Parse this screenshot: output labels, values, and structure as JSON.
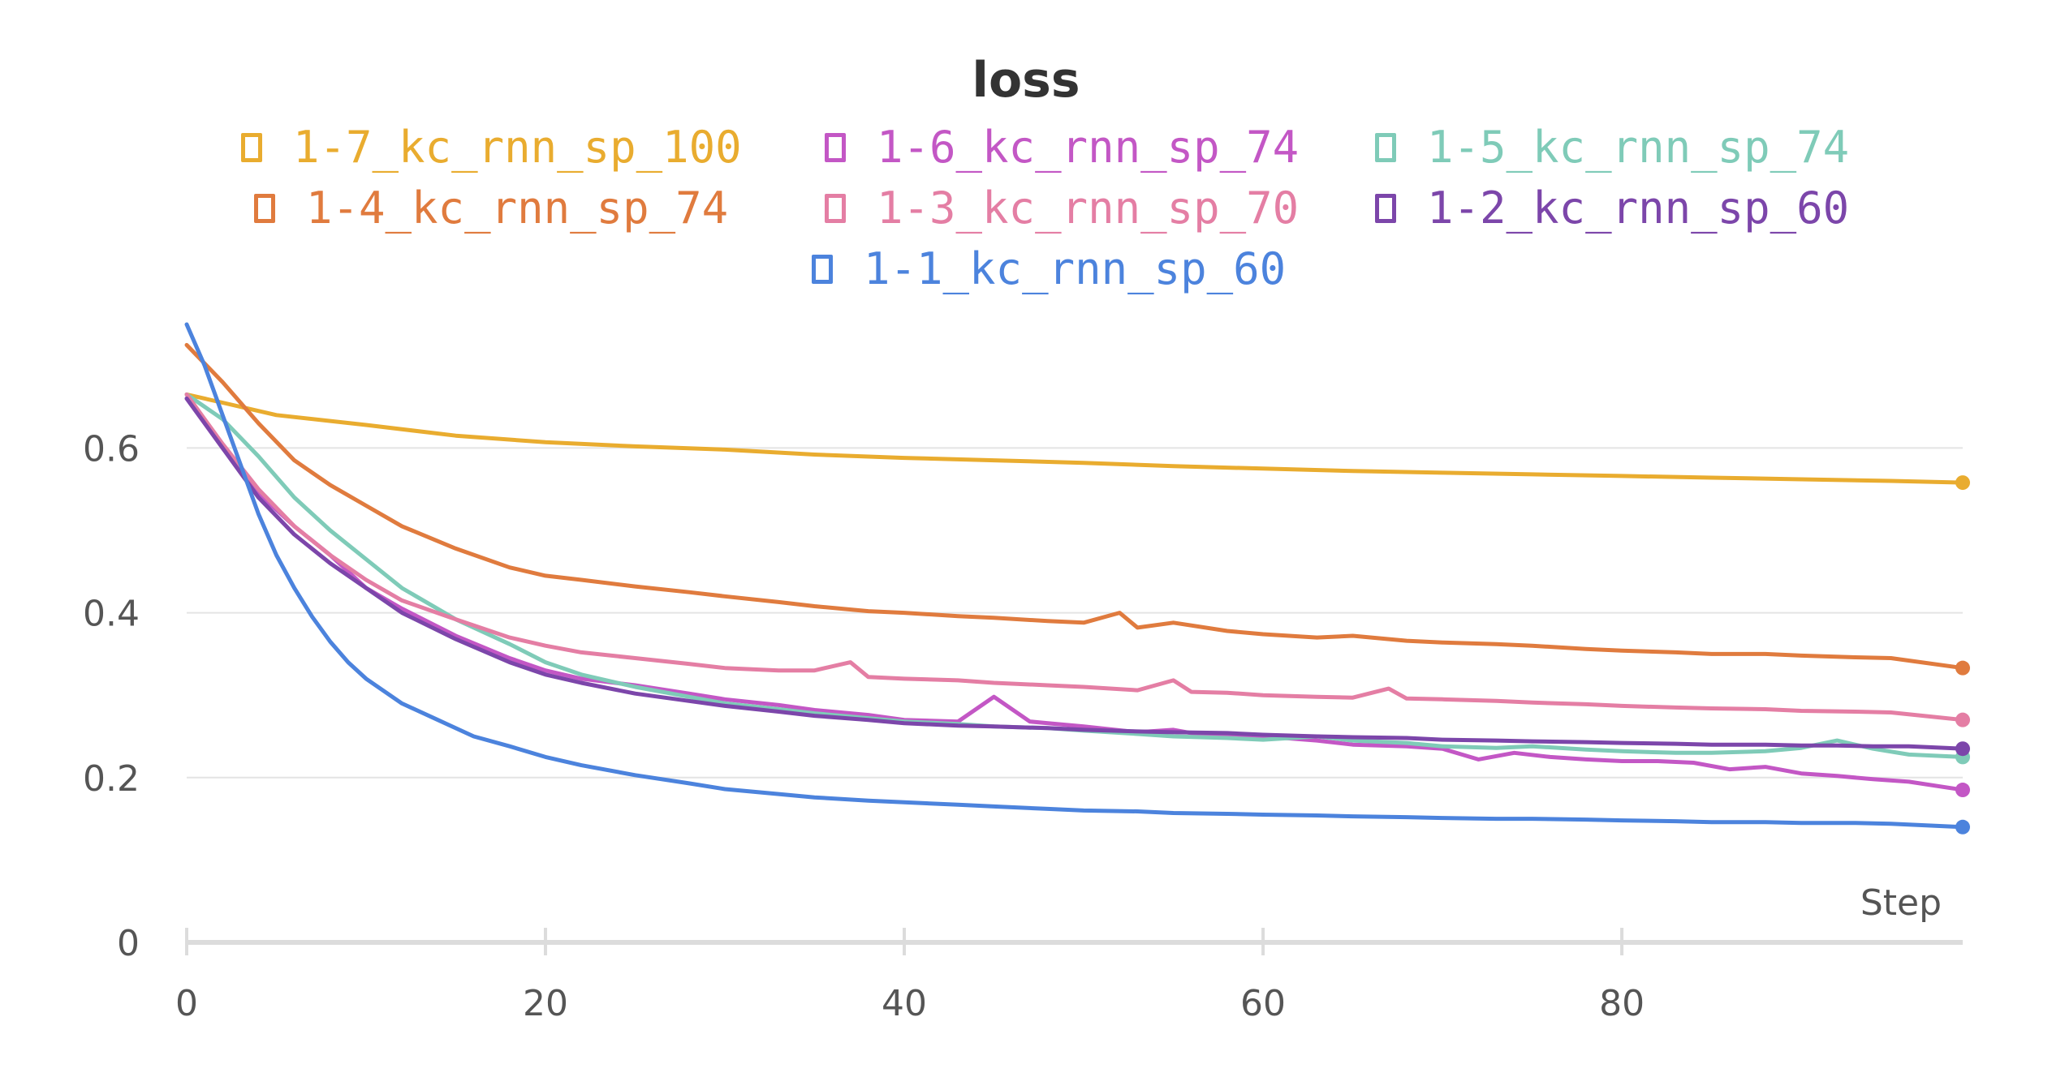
{
  "chart_data": {
    "type": "line",
    "title": "loss",
    "xlabel": "Step",
    "ylabel": "",
    "xlim": [
      0,
      99
    ],
    "ylim": [
      0,
      0.75
    ],
    "x_ticks": [
      0,
      20,
      40,
      60,
      80
    ],
    "x_tick_labels": [
      "0",
      "20",
      "40",
      "60",
      "80"
    ],
    "y_ticks": [
      0,
      0.2,
      0.4,
      0.6
    ],
    "y_tick_labels": [
      "0",
      "0.2",
      "0.4",
      "0.6"
    ],
    "grid": true,
    "legend_position": "top",
    "series": [
      {
        "name": "1-7_kc_rnn_sp_100",
        "color": "#e9ac2f",
        "points": [
          [
            0,
            0.665
          ],
          [
            2,
            0.655
          ],
          [
            5,
            0.64
          ],
          [
            10,
            0.628
          ],
          [
            15,
            0.615
          ],
          [
            20,
            0.607
          ],
          [
            25,
            0.602
          ],
          [
            30,
            0.598
          ],
          [
            35,
            0.592
          ],
          [
            40,
            0.588
          ],
          [
            45,
            0.585
          ],
          [
            50,
            0.582
          ],
          [
            55,
            0.578
          ],
          [
            60,
            0.575
          ],
          [
            65,
            0.572
          ],
          [
            70,
            0.57
          ],
          [
            75,
            0.568
          ],
          [
            80,
            0.566
          ],
          [
            85,
            0.564
          ],
          [
            90,
            0.562
          ],
          [
            95,
            0.56
          ],
          [
            99,
            0.558
          ]
        ]
      },
      {
        "name": "1-6_kc_rnn_sp_74",
        "color": "#c357c5",
        "points": [
          [
            0,
            0.66
          ],
          [
            2,
            0.6
          ],
          [
            4,
            0.545
          ],
          [
            6,
            0.505
          ],
          [
            8,
            0.47
          ],
          [
            10,
            0.43
          ],
          [
            12,
            0.405
          ],
          [
            15,
            0.372
          ],
          [
            18,
            0.345
          ],
          [
            20,
            0.33
          ],
          [
            22,
            0.32
          ],
          [
            25,
            0.312
          ],
          [
            28,
            0.302
          ],
          [
            30,
            0.295
          ],
          [
            33,
            0.288
          ],
          [
            35,
            0.282
          ],
          [
            38,
            0.276
          ],
          [
            40,
            0.27
          ],
          [
            43,
            0.268
          ],
          [
            45,
            0.298
          ],
          [
            47,
            0.268
          ],
          [
            50,
            0.262
          ],
          [
            53,
            0.255
          ],
          [
            55,
            0.258
          ],
          [
            57,
            0.25
          ],
          [
            60,
            0.25
          ],
          [
            63,
            0.245
          ],
          [
            65,
            0.24
          ],
          [
            68,
            0.238
          ],
          [
            70,
            0.235
          ],
          [
            72,
            0.222
          ],
          [
            74,
            0.23
          ],
          [
            76,
            0.225
          ],
          [
            78,
            0.222
          ],
          [
            80,
            0.22
          ],
          [
            82,
            0.22
          ],
          [
            84,
            0.218
          ],
          [
            86,
            0.21
          ],
          [
            88,
            0.213
          ],
          [
            90,
            0.205
          ],
          [
            92,
            0.202
          ],
          [
            94,
            0.198
          ],
          [
            96,
            0.195
          ],
          [
            99,
            0.185
          ]
        ]
      },
      {
        "name": "1-5_kc_rnn_sp_74",
        "color": "#7fcbb8",
        "points": [
          [
            0,
            0.665
          ],
          [
            2,
            0.635
          ],
          [
            4,
            0.59
          ],
          [
            6,
            0.54
          ],
          [
            8,
            0.5
          ],
          [
            10,
            0.465
          ],
          [
            12,
            0.43
          ],
          [
            15,
            0.392
          ],
          [
            18,
            0.362
          ],
          [
            20,
            0.34
          ],
          [
            22,
            0.325
          ],
          [
            25,
            0.31
          ],
          [
            28,
            0.298
          ],
          [
            30,
            0.29
          ],
          [
            33,
            0.283
          ],
          [
            35,
            0.278
          ],
          [
            38,
            0.272
          ],
          [
            40,
            0.268
          ],
          [
            43,
            0.265
          ],
          [
            45,
            0.262
          ],
          [
            48,
            0.26
          ],
          [
            50,
            0.257
          ],
          [
            53,
            0.253
          ],
          [
            55,
            0.25
          ],
          [
            58,
            0.248
          ],
          [
            60,
            0.246
          ],
          [
            63,
            0.25
          ],
          [
            65,
            0.245
          ],
          [
            68,
            0.242
          ],
          [
            70,
            0.238
          ],
          [
            73,
            0.236
          ],
          [
            75,
            0.238
          ],
          [
            78,
            0.234
          ],
          [
            80,
            0.232
          ],
          [
            83,
            0.23
          ],
          [
            85,
            0.23
          ],
          [
            88,
            0.232
          ],
          [
            90,
            0.236
          ],
          [
            92,
            0.245
          ],
          [
            94,
            0.235
          ],
          [
            96,
            0.228
          ],
          [
            99,
            0.225
          ]
        ]
      },
      {
        "name": "1-4_kc_rnn_sp_74",
        "color": "#e07b3e",
        "points": [
          [
            0,
            0.725
          ],
          [
            2,
            0.68
          ],
          [
            4,
            0.63
          ],
          [
            6,
            0.585
          ],
          [
            8,
            0.555
          ],
          [
            10,
            0.53
          ],
          [
            12,
            0.505
          ],
          [
            15,
            0.478
          ],
          [
            18,
            0.455
          ],
          [
            20,
            0.445
          ],
          [
            22,
            0.44
          ],
          [
            25,
            0.432
          ],
          [
            28,
            0.425
          ],
          [
            30,
            0.42
          ],
          [
            33,
            0.413
          ],
          [
            35,
            0.408
          ],
          [
            38,
            0.402
          ],
          [
            40,
            0.4
          ],
          [
            43,
            0.396
          ],
          [
            45,
            0.394
          ],
          [
            48,
            0.39
          ],
          [
            50,
            0.388
          ],
          [
            52,
            0.4
          ],
          [
            53,
            0.382
          ],
          [
            55,
            0.388
          ],
          [
            58,
            0.378
          ],
          [
            60,
            0.374
          ],
          [
            63,
            0.37
          ],
          [
            65,
            0.372
          ],
          [
            68,
            0.366
          ],
          [
            70,
            0.364
          ],
          [
            73,
            0.362
          ],
          [
            75,
            0.36
          ],
          [
            78,
            0.356
          ],
          [
            80,
            0.354
          ],
          [
            83,
            0.352
          ],
          [
            85,
            0.35
          ],
          [
            88,
            0.35
          ],
          [
            90,
            0.348
          ],
          [
            93,
            0.346
          ],
          [
            95,
            0.345
          ],
          [
            99,
            0.333
          ]
        ]
      },
      {
        "name": "1-3_kc_rnn_sp_70",
        "color": "#e47ea4",
        "points": [
          [
            0,
            0.665
          ],
          [
            2,
            0.605
          ],
          [
            4,
            0.55
          ],
          [
            6,
            0.505
          ],
          [
            8,
            0.47
          ],
          [
            10,
            0.44
          ],
          [
            12,
            0.415
          ],
          [
            15,
            0.392
          ],
          [
            18,
            0.37
          ],
          [
            20,
            0.36
          ],
          [
            22,
            0.352
          ],
          [
            25,
            0.345
          ],
          [
            28,
            0.338
          ],
          [
            30,
            0.333
          ],
          [
            33,
            0.33
          ],
          [
            35,
            0.33
          ],
          [
            37,
            0.34
          ],
          [
            38,
            0.322
          ],
          [
            40,
            0.32
          ],
          [
            43,
            0.318
          ],
          [
            45,
            0.315
          ],
          [
            48,
            0.312
          ],
          [
            50,
            0.31
          ],
          [
            53,
            0.306
          ],
          [
            55,
            0.318
          ],
          [
            56,
            0.304
          ],
          [
            58,
            0.303
          ],
          [
            60,
            0.3
          ],
          [
            63,
            0.298
          ],
          [
            65,
            0.297
          ],
          [
            67,
            0.308
          ],
          [
            68,
            0.296
          ],
          [
            70,
            0.295
          ],
          [
            73,
            0.293
          ],
          [
            75,
            0.291
          ],
          [
            78,
            0.289
          ],
          [
            80,
            0.287
          ],
          [
            83,
            0.285
          ],
          [
            85,
            0.284
          ],
          [
            88,
            0.283
          ],
          [
            90,
            0.281
          ],
          [
            93,
            0.28
          ],
          [
            95,
            0.279
          ],
          [
            99,
            0.27
          ]
        ]
      },
      {
        "name": "1-2_kc_rnn_sp_60",
        "color": "#7c46aa",
        "points": [
          [
            0,
            0.66
          ],
          [
            2,
            0.6
          ],
          [
            4,
            0.54
          ],
          [
            6,
            0.495
          ],
          [
            8,
            0.46
          ],
          [
            10,
            0.43
          ],
          [
            12,
            0.4
          ],
          [
            15,
            0.368
          ],
          [
            18,
            0.34
          ],
          [
            20,
            0.325
          ],
          [
            22,
            0.315
          ],
          [
            25,
            0.302
          ],
          [
            28,
            0.293
          ],
          [
            30,
            0.287
          ],
          [
            33,
            0.28
          ],
          [
            35,
            0.275
          ],
          [
            38,
            0.27
          ],
          [
            40,
            0.266
          ],
          [
            43,
            0.263
          ],
          [
            45,
            0.262
          ],
          [
            48,
            0.26
          ],
          [
            50,
            0.258
          ],
          [
            53,
            0.256
          ],
          [
            55,
            0.255
          ],
          [
            58,
            0.254
          ],
          [
            60,
            0.252
          ],
          [
            63,
            0.25
          ],
          [
            65,
            0.249
          ],
          [
            68,
            0.248
          ],
          [
            70,
            0.246
          ],
          [
            73,
            0.245
          ],
          [
            75,
            0.244
          ],
          [
            78,
            0.243
          ],
          [
            80,
            0.242
          ],
          [
            83,
            0.241
          ],
          [
            85,
            0.24
          ],
          [
            88,
            0.24
          ],
          [
            90,
            0.239
          ],
          [
            92,
            0.239
          ],
          [
            94,
            0.238
          ],
          [
            96,
            0.238
          ],
          [
            99,
            0.235
          ]
        ]
      },
      {
        "name": "1-1_kc_rnn_sp_60",
        "color": "#4c83dd",
        "points": [
          [
            0,
            0.75
          ],
          [
            1,
            0.7
          ],
          [
            2,
            0.64
          ],
          [
            3,
            0.58
          ],
          [
            4,
            0.52
          ],
          [
            5,
            0.47
          ],
          [
            6,
            0.43
          ],
          [
            7,
            0.395
          ],
          [
            8,
            0.365
          ],
          [
            9,
            0.34
          ],
          [
            10,
            0.32
          ],
          [
            12,
            0.29
          ],
          [
            14,
            0.27
          ],
          [
            16,
            0.25
          ],
          [
            18,
            0.238
          ],
          [
            20,
            0.225
          ],
          [
            22,
            0.215
          ],
          [
            25,
            0.203
          ],
          [
            28,
            0.193
          ],
          [
            30,
            0.186
          ],
          [
            33,
            0.18
          ],
          [
            35,
            0.176
          ],
          [
            38,
            0.172
          ],
          [
            40,
            0.17
          ],
          [
            43,
            0.167
          ],
          [
            45,
            0.165
          ],
          [
            48,
            0.162
          ],
          [
            50,
            0.16
          ],
          [
            53,
            0.159
          ],
          [
            55,
            0.157
          ],
          [
            58,
            0.156
          ],
          [
            60,
            0.155
          ],
          [
            63,
            0.154
          ],
          [
            65,
            0.153
          ],
          [
            68,
            0.152
          ],
          [
            70,
            0.151
          ],
          [
            73,
            0.15
          ],
          [
            75,
            0.15
          ],
          [
            78,
            0.149
          ],
          [
            80,
            0.148
          ],
          [
            83,
            0.147
          ],
          [
            85,
            0.146
          ],
          [
            88,
            0.146
          ],
          [
            90,
            0.145
          ],
          [
            93,
            0.145
          ],
          [
            95,
            0.144
          ],
          [
            99,
            0.14
          ]
        ]
      }
    ]
  }
}
